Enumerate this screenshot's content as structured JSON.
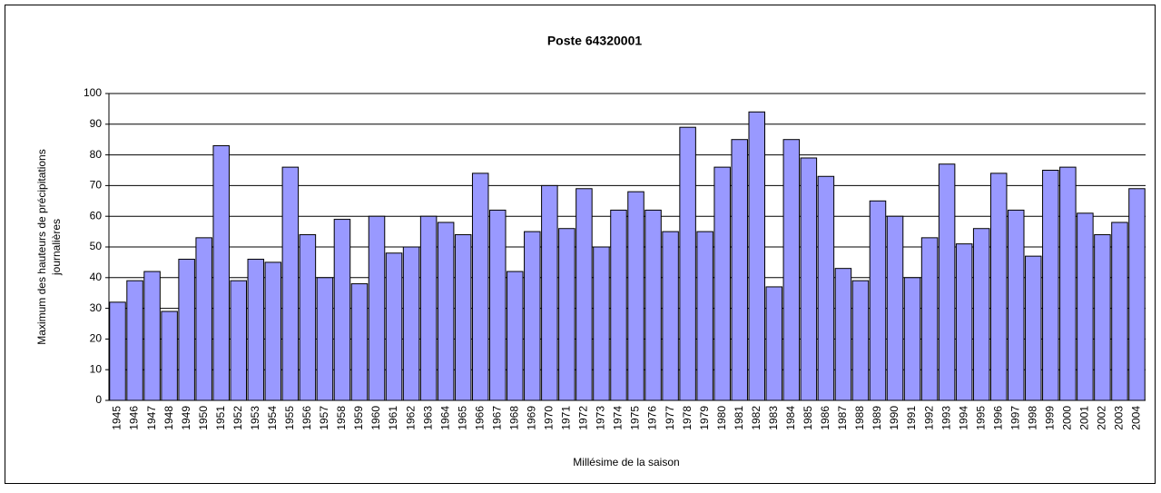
{
  "chart_data": {
    "type": "bar",
    "title": "Poste 64320001",
    "x_label": "Millésime de la saison",
    "y_label": [
      "Maximum des hauteurs de précipitations",
      "journalières"
    ],
    "categories": [
      "1945",
      "1946",
      "1947",
      "1948",
      "1949",
      "1950",
      "1951",
      "1952",
      "1953",
      "1954",
      "1955",
      "1956",
      "1957",
      "1958",
      "1959",
      "1960",
      "1961",
      "1962",
      "1963",
      "1964",
      "1965",
      "1966",
      "1967",
      "1968",
      "1969",
      "1970",
      "1971",
      "1972",
      "1973",
      "1974",
      "1975",
      "1976",
      "1977",
      "1978",
      "1979",
      "1980",
      "1981",
      "1982",
      "1983",
      "1984",
      "1985",
      "1986",
      "1987",
      "1988",
      "1989",
      "1990",
      "1991",
      "1992",
      "1993",
      "1994",
      "1995",
      "1996",
      "1997",
      "1998",
      "1999",
      "2000",
      "2001",
      "2002",
      "2003",
      "2004"
    ],
    "values": [
      32,
      39,
      42,
      29,
      46,
      53,
      83,
      39,
      46,
      45,
      76,
      54,
      40,
      59,
      38,
      60,
      48,
      50,
      60,
      58,
      54,
      74,
      62,
      42,
      55,
      70,
      56,
      69,
      50,
      62,
      68,
      62,
      55,
      89,
      55,
      76,
      85,
      94,
      37,
      85,
      79,
      73,
      43,
      39,
      65,
      60,
      40,
      53,
      77,
      51,
      56,
      74,
      62,
      47,
      75,
      76,
      61,
      54,
      58,
      69
    ],
    "color": "#9999ff",
    "ylim": [
      0,
      100
    ],
    "yticks": [
      0,
      10,
      20,
      30,
      40,
      50,
      60,
      70,
      80,
      90,
      100
    ],
    "grid": true
  }
}
